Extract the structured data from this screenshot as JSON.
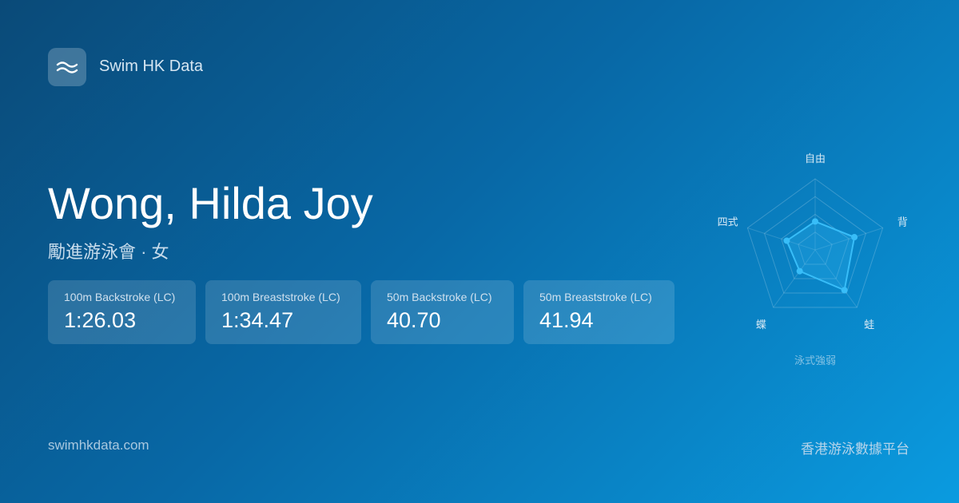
{
  "brand": {
    "name": "Swim HK Data",
    "icon": "waves-icon"
  },
  "swimmer": {
    "name": "Wong, Hilda Joy",
    "subtitle": "勵進游泳會 · 女"
  },
  "best_times": [
    {
      "event": "100m Backstroke (LC)",
      "time": "1:26.03"
    },
    {
      "event": "100m Breaststroke (LC)",
      "time": "1:34.47"
    },
    {
      "event": "50m Backstroke (LC)",
      "time": "40.70"
    },
    {
      "event": "50m Breaststroke (LC)",
      "time": "41.94"
    }
  ],
  "footer": {
    "site": "swimhkdata.com",
    "tagline": "香港游泳數據平台"
  },
  "chart_data": {
    "type": "radar",
    "caption": "泳式強弱",
    "categories": [
      "自由",
      "背",
      "蛙",
      "蝶",
      "四式"
    ],
    "values": [
      0.4,
      0.58,
      0.7,
      0.37,
      0.42
    ],
    "range": [
      0,
      1
    ],
    "grid_levels": 4,
    "color": "#38bdf8"
  }
}
